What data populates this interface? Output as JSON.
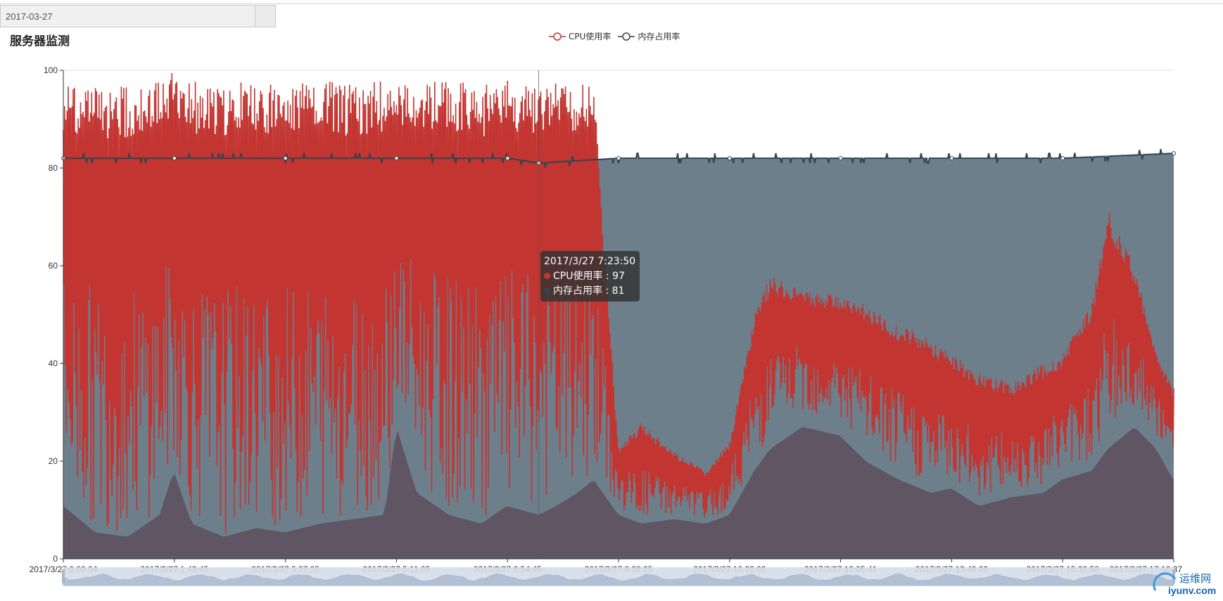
{
  "date_picker": {
    "value": "2017-03-27"
  },
  "colors": {
    "cpu": "#c23531",
    "memory": "#2f4554",
    "memory_area": "#6e7f8c",
    "grid": "#dcdcdc"
  },
  "tooltip": {
    "time": "2017/3/27 7:23:50",
    "cpu_line": "CPU使用率 : 97",
    "mem_line": "内存占用率 : 81"
  },
  "chart_data": {
    "type": "area",
    "title": "服务器监测",
    "legend": [
      {
        "name": "CPU使用率",
        "color": "#c23531"
      },
      {
        "name": "内存占用率",
        "color": "#2f4554"
      }
    ],
    "legend_position": "top-center",
    "ylim": [
      0,
      100
    ],
    "y_ticks": [
      "0",
      "20",
      "40",
      "60",
      "80",
      "100"
    ],
    "x_tick_labels": [
      "2017/3/27 0:00:04",
      "2017/3/27 1:43:45",
      "2017/3/27 3:27:25",
      "2017/3/27 5:11:05",
      "2017/3/27 6:54:45",
      "2017/3/27 8:38:25",
      "2017/3/27 10:22:03",
      "2017/3/27 12:05:41",
      "2017/3/27 13:49:20",
      "2017/3/27 15:32:58",
      "2017/3/27 17:16:37"
    ],
    "grid": true,
    "series": [
      {
        "name": "CPU使用率",
        "times": [
          "00:00:04",
          "00:30",
          "01:00",
          "01:30",
          "01:43",
          "02:00",
          "02:30",
          "03:00",
          "03:27",
          "04:00",
          "04:30",
          "05:00",
          "05:11",
          "05:30",
          "06:00",
          "06:30",
          "06:54",
          "07:23:50",
          "07:40",
          "08:00",
          "08:15",
          "08:38",
          "09:00",
          "09:30",
          "10:00",
          "10:22",
          "10:45",
          "11:00",
          "11:30",
          "12:05",
          "12:30",
          "13:00",
          "13:30",
          "13:49",
          "14:15",
          "14:45",
          "15:15",
          "15:32",
          "16:00",
          "16:15",
          "16:40",
          "17:00",
          "17:16"
        ],
        "peak": [
          98,
          97,
          97,
          98,
          100,
          98,
          97,
          98,
          97,
          98,
          97,
          98,
          97,
          98,
          98,
          97,
          98,
          97,
          98,
          97,
          98,
          23,
          28,
          22,
          18,
          24,
          50,
          58,
          55,
          54,
          52,
          48,
          45,
          42,
          38,
          36,
          40,
          42,
          52,
          72,
          60,
          42,
          35
        ],
        "low": [
          12,
          6,
          5,
          10,
          20,
          8,
          5,
          7,
          6,
          8,
          9,
          10,
          30,
          15,
          10,
          8,
          12,
          10,
          12,
          15,
          18,
          10,
          8,
          9,
          8,
          10,
          20,
          25,
          30,
          28,
          22,
          18,
          15,
          16,
          12,
          14,
          15,
          18,
          20,
          25,
          30,
          25,
          18
        ]
      },
      {
        "name": "内存占用率",
        "times": [
          "00:00:04",
          "01:43:45",
          "03:27:25",
          "05:11:05",
          "06:54:45",
          "07:23:50",
          "08:38:25",
          "10:22:03",
          "12:05:41",
          "13:49:20",
          "15:32:58",
          "17:16:37"
        ],
        "values": [
          82,
          82,
          82,
          82,
          82,
          81,
          82,
          82,
          82,
          82,
          82,
          83
        ]
      }
    ]
  },
  "watermark": {
    "line1": "运维网",
    "line2": "iyunv.com"
  }
}
